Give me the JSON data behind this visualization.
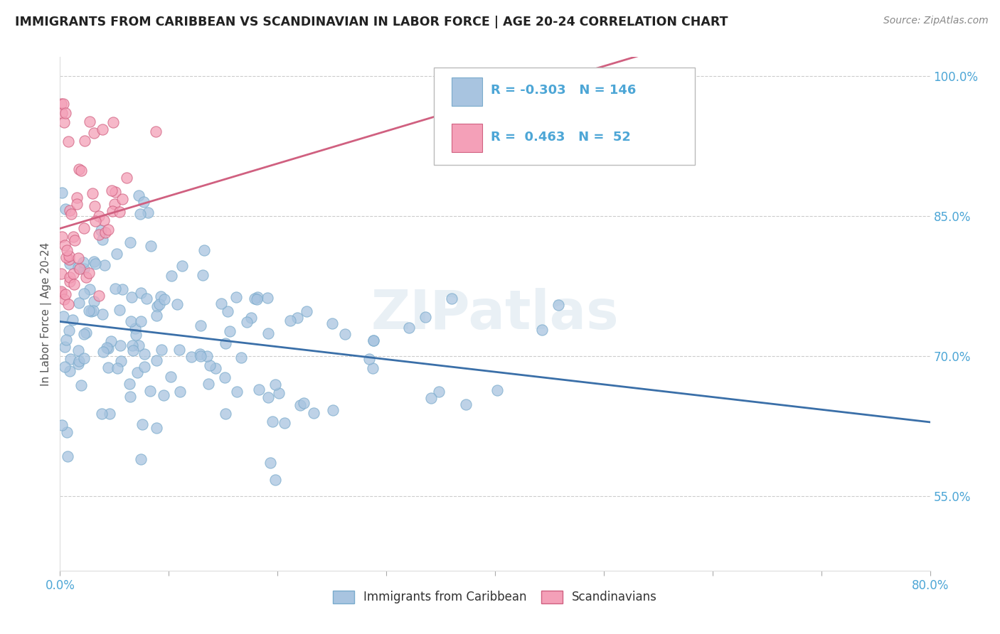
{
  "title": "IMMIGRANTS FROM CARIBBEAN VS SCANDINAVIAN IN LABOR FORCE | AGE 20-24 CORRELATION CHART",
  "source": "Source: ZipAtlas.com",
  "ylabel": "In Labor Force | Age 20-24",
  "xlim": [
    0.0,
    0.8
  ],
  "ylim": [
    0.47,
    1.02
  ],
  "xticks": [
    0.0,
    0.1,
    0.2,
    0.3,
    0.4,
    0.5,
    0.6,
    0.7,
    0.8
  ],
  "xticklabels": [
    "0.0%",
    "",
    "",
    "",
    "",
    "",
    "",
    "",
    "80.0%"
  ],
  "yticks": [
    0.55,
    0.7,
    0.85,
    1.0
  ],
  "yticklabels": [
    "55.0%",
    "70.0%",
    "85.0%",
    "100.0%"
  ],
  "caribbean_color": "#a8c4e0",
  "caribbean_edge": "#7aabcc",
  "scandinavian_color": "#f4a0b8",
  "scandinavian_edge": "#d06080",
  "caribbean_line_color": "#3a6fa8",
  "scandinavian_line_color": "#d06080",
  "caribbean_R": -0.303,
  "caribbean_N": 146,
  "scandinavian_R": 0.463,
  "scandinavian_N": 52,
  "legend_label_caribbean": "Immigrants from Caribbean",
  "legend_label_scandinavian": "Scandinavians",
  "watermark": "ZIPatlas",
  "background_color": "#ffffff",
  "grid_color": "#cccccc",
  "title_color": "#222222",
  "source_color": "#888888",
  "tick_color": "#4da6d6",
  "ylabel_color": "#555555"
}
